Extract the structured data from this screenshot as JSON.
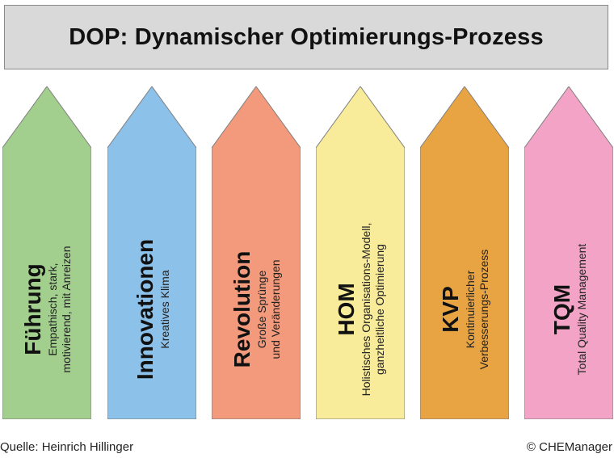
{
  "title": "DOP: Dynamischer Optimierungs-Prozess",
  "arrows": [
    {
      "label": "Führung",
      "sub": [
        "Empathisch, stark,",
        "motivierend, mit Anreizen"
      ],
      "color": "#a3cf8e"
    },
    {
      "label": "Innovationen",
      "sub": [
        "Kreatives Klima"
      ],
      "color": "#8cc1ea"
    },
    {
      "label": "Revolution",
      "sub": [
        "Große Sprünge",
        "und Veränderungen"
      ],
      "color": "#f29a7b"
    },
    {
      "label": "HOM",
      "sub": [
        "Holistisches Organisations-Modell,",
        "ganzheitliche Optimierung"
      ],
      "color": "#f8eb9a"
    },
    {
      "label": "KVP",
      "sub": [
        "Kontinuierlicher",
        "Verbesserungs-Prozess"
      ],
      "color": "#e8a343"
    },
    {
      "label": "TQM",
      "sub": [
        "Total Quality Management"
      ],
      "color": "#f2a3c6"
    }
  ],
  "footer": {
    "source": "Quelle: Heinrich Hillinger",
    "copyright": "© CHEManager"
  }
}
